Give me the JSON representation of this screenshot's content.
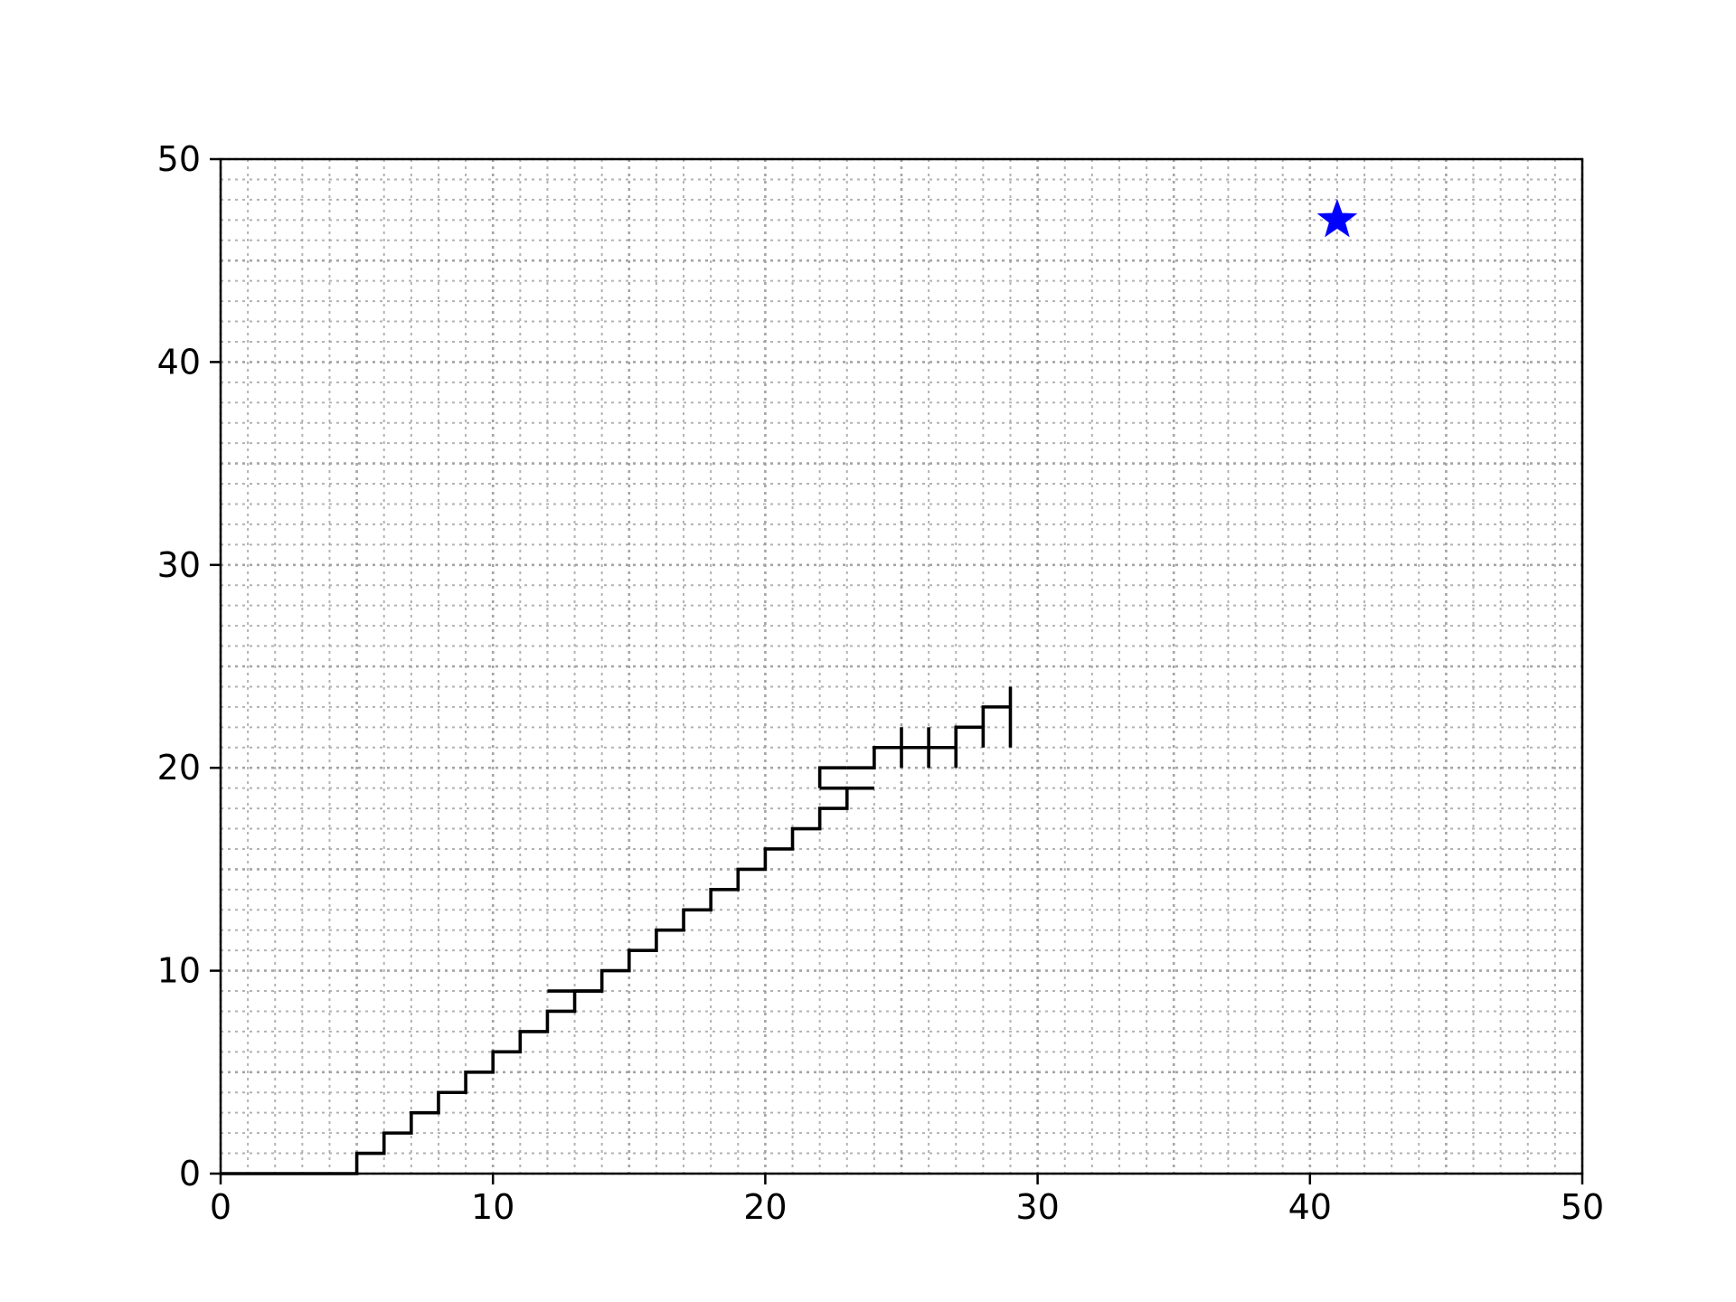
{
  "chart_data": {
    "type": "line",
    "title": "",
    "xlabel": "",
    "ylabel": "",
    "xlim": [
      0,
      50
    ],
    "ylim": [
      0,
      50
    ],
    "x_ticks": [
      "0",
      "10",
      "20",
      "30",
      "40",
      "50"
    ],
    "y_ticks": [
      "0",
      "10",
      "20",
      "30",
      "40",
      "50"
    ],
    "grid": {
      "on": true,
      "style": "dotted",
      "color": "#a0a0a0",
      "minor_step": 1,
      "major_step": 5
    },
    "path_color": "#000000",
    "segments": [
      [
        [
          0,
          0
        ],
        [
          5,
          0
        ],
        [
          5,
          1
        ],
        [
          6,
          1
        ],
        [
          6,
          2
        ],
        [
          7,
          2
        ],
        [
          7,
          3
        ],
        [
          8,
          3
        ],
        [
          8,
          4
        ],
        [
          9,
          4
        ],
        [
          9,
          5
        ],
        [
          10,
          5
        ],
        [
          10,
          6
        ],
        [
          11,
          6
        ],
        [
          11,
          7
        ],
        [
          12,
          7
        ],
        [
          12,
          8
        ],
        [
          13,
          8
        ],
        [
          13,
          9
        ],
        [
          14,
          9
        ],
        [
          14,
          10
        ],
        [
          15,
          10
        ],
        [
          15,
          11
        ],
        [
          16,
          11
        ],
        [
          16,
          12
        ],
        [
          17,
          12
        ],
        [
          17,
          13
        ],
        [
          18,
          13
        ],
        [
          18,
          14
        ],
        [
          19,
          14
        ],
        [
          19,
          15
        ],
        [
          20,
          15
        ],
        [
          20,
          16
        ],
        [
          21,
          16
        ],
        [
          21,
          17
        ],
        [
          22,
          17
        ],
        [
          22,
          18
        ],
        [
          23,
          18
        ],
        [
          23,
          19
        ],
        [
          24,
          19
        ]
      ],
      [
        [
          12,
          9
        ],
        [
          14,
          9
        ]
      ],
      [
        [
          22,
          19
        ],
        [
          23,
          19
        ]
      ],
      [
        [
          23,
          20
        ],
        [
          22,
          20
        ],
        [
          22,
          19
        ]
      ],
      [
        [
          23,
          20
        ],
        [
          24,
          20
        ],
        [
          24,
          21
        ],
        [
          25,
          21
        ],
        [
          26,
          21
        ],
        [
          27,
          21
        ],
        [
          27,
          22
        ],
        [
          28,
          22
        ],
        [
          28,
          21
        ]
      ],
      [
        [
          25,
          20
        ],
        [
          25,
          22
        ]
      ],
      [
        [
          26,
          20
        ],
        [
          26,
          22
        ]
      ],
      [
        [
          27,
          20
        ],
        [
          27,
          21
        ]
      ],
      [
        [
          28,
          22
        ],
        [
          28,
          23
        ],
        [
          29,
          23
        ]
      ],
      [
        [
          29,
          21
        ],
        [
          29,
          24
        ]
      ]
    ],
    "goal_marker": {
      "shape": "star",
      "x": 41,
      "y": 47,
      "color": "#0000ff"
    }
  }
}
